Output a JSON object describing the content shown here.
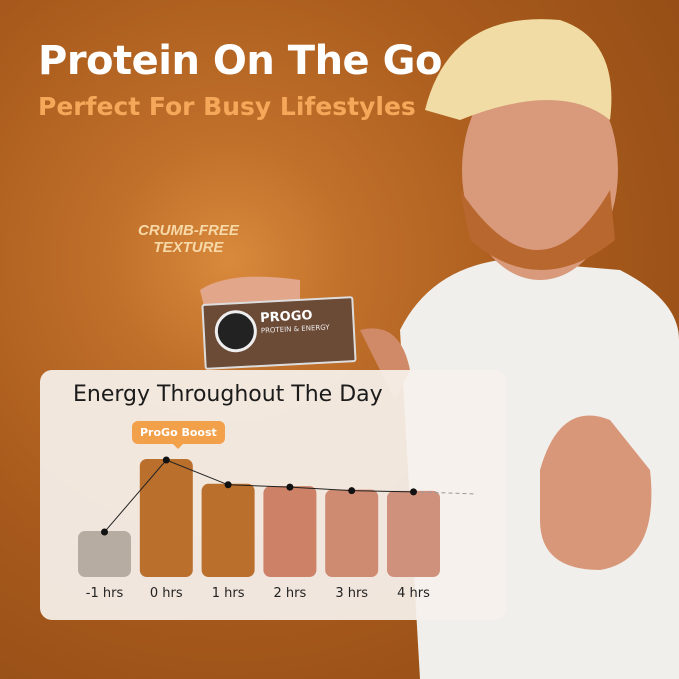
{
  "header": {
    "title": "Protein On The Go",
    "subtitle": "Perfect For Busy Lifestyles"
  },
  "callout": {
    "line1": "CRUMB-FREE",
    "line2": "TEXTURE"
  },
  "product": {
    "brand": "PROGO",
    "tagline": "PROTEIN & ENERGY"
  },
  "colors": {
    "background": "#b4631f",
    "accent": "#f3a04b",
    "card": "#f6f1ec"
  },
  "chart_data": {
    "type": "bar",
    "title": "Energy Throughout The Day",
    "annotation": "ProGo Boost",
    "categories": [
      "-1 hrs",
      "0 hrs",
      "1 hrs",
      "2 hrs",
      "3 hrs",
      "4 hrs"
    ],
    "values": [
      39,
      100,
      79,
      77,
      74,
      73
    ],
    "bar_colors": [
      "#b7aca2",
      "#bb6f2c",
      "#bb6f2c",
      "#cd8268",
      "#cf8a72",
      "#d0917c"
    ],
    "ylim": [
      0,
      100
    ],
    "grid": false,
    "line_overlay": true
  }
}
